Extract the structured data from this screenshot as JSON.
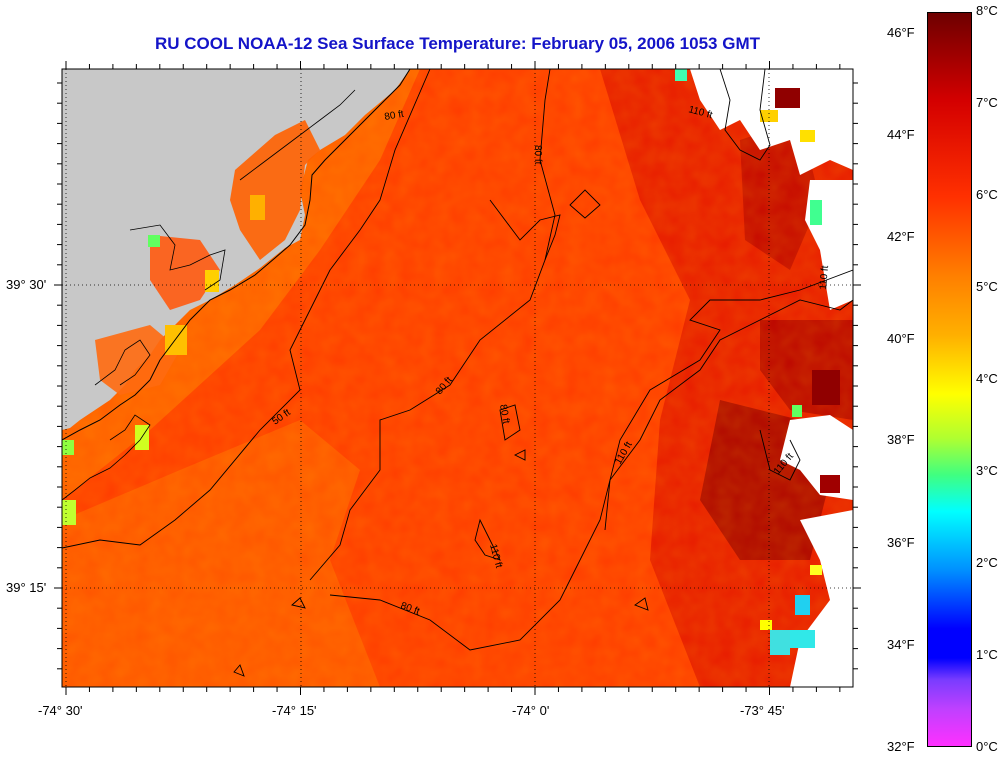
{
  "title": "RU COOL  NOAA-12  Sea Surface Temperature:  February 05, 2006 1053 GMT",
  "axes": {
    "lat_labels": [
      "39° 30'",
      "39° 15'"
    ],
    "lon_labels": [
      "-74° 30'",
      "-74° 15'",
      "-74° 0'",
      "-73° 45'"
    ]
  },
  "contour_labels": [
    "110 ft",
    "80 ft",
    "80 ft",
    "110 ft",
    "50 ft",
    "80 ft",
    "80 ft",
    "110 ft",
    "110 ft",
    "110 ft",
    "80 ft"
  ],
  "colorbar": {
    "fahrenheit": [
      "46°F",
      "44°F",
      "42°F",
      "40°F",
      "38°F",
      "36°F",
      "34°F",
      "32°F"
    ],
    "celsius": [
      "8°C",
      "7°C",
      "6°C",
      "5°C",
      "4°C",
      "3°C",
      "2°C",
      "1°C",
      "0°C"
    ]
  },
  "colors": {
    "land": "#c8c8c8",
    "ocean_dominant": "#ff3a00",
    "warm_core": "#a00000",
    "cloud_mask": "#ffffff",
    "title": "#1414c8"
  }
}
